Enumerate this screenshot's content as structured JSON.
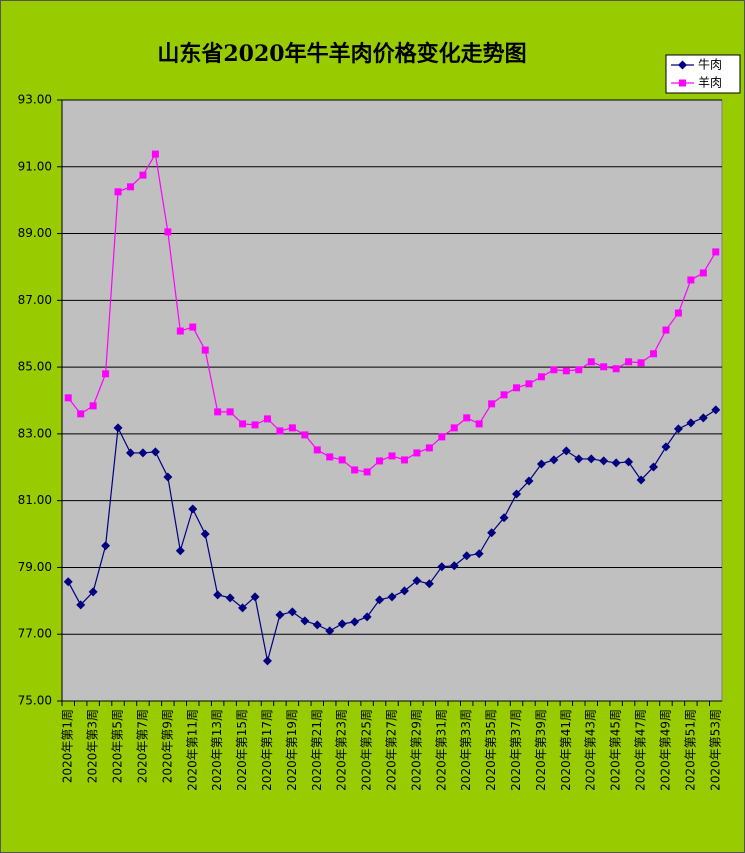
{
  "chart_data": {
    "type": "line",
    "title": "山东省2020年牛羊肉价格变化走势图",
    "categories": [
      "2020年第1周",
      null,
      "2020年第3周",
      null,
      "2020年第5周",
      null,
      "2020年第7周",
      null,
      "2020年第9周",
      null,
      "2020年第11周",
      null,
      "2020年第13周",
      null,
      "2020年第15周",
      null,
      "2020年第17周",
      null,
      "2020年第19周",
      null,
      "2020年第21周",
      null,
      "2020年第23周",
      null,
      "2020年第25周",
      null,
      "2020年第27周",
      null,
      "2020年第29周",
      null,
      "2020年第31周",
      null,
      "2020年第33周",
      null,
      "2020年第35周",
      null,
      "2020年第37周",
      null,
      "2020年第39周",
      null,
      "2020年第41周",
      null,
      "2020年第43周",
      null,
      "2020年第45周",
      null,
      "2020年第47周",
      null,
      "2020年第49周",
      null,
      "2020年第51周",
      null,
      "2020年第53周"
    ],
    "series": [
      {
        "name": "牛肉",
        "color": "#000080",
        "marker": "diamond",
        "values": [
          78.57,
          77.88,
          78.27,
          79.65,
          83.18,
          82.43,
          82.43,
          82.46,
          81.71,
          79.5,
          80.75,
          80.0,
          78.18,
          78.09,
          77.79,
          78.12,
          76.2,
          77.58,
          77.67,
          77.4,
          77.28,
          77.1,
          77.31,
          77.37,
          77.52,
          78.03,
          78.12,
          78.3,
          78.6,
          78.51,
          79.02,
          79.05,
          79.35,
          79.41,
          80.04,
          80.49,
          81.2,
          81.59,
          82.1,
          82.22,
          82.49,
          82.25,
          82.25,
          82.19,
          82.13,
          82.16,
          81.62,
          82.01,
          82.61,
          83.15,
          83.33,
          83.48,
          83.72
        ]
      },
      {
        "name": "羊肉",
        "color": "#ff00ff",
        "marker": "square",
        "values": [
          84.08,
          83.6,
          83.84,
          84.8,
          90.25,
          90.4,
          90.75,
          91.38,
          89.05,
          86.08,
          86.2,
          85.51,
          83.66,
          83.66,
          83.3,
          83.27,
          83.45,
          83.09,
          83.18,
          82.97,
          82.52,
          82.31,
          82.22,
          81.92,
          81.86,
          82.19,
          82.34,
          82.22,
          82.43,
          82.58,
          82.91,
          83.18,
          83.48,
          83.3,
          83.9,
          84.17,
          84.38,
          84.5,
          84.71,
          84.92,
          84.89,
          84.92,
          85.16,
          85.01,
          84.95,
          85.16,
          85.13,
          85.4,
          86.11,
          86.62,
          87.61,
          87.82,
          88.45
        ]
      }
    ],
    "ylim": [
      75,
      93
    ],
    "yticks": [
      {
        "value": 75,
        "label": "75.00"
      },
      {
        "value": 77,
        "label": "77.00"
      },
      {
        "value": 79,
        "label": "79.00"
      },
      {
        "value": 81,
        "label": "81.00"
      },
      {
        "value": 83,
        "label": "83.00"
      },
      {
        "value": 85,
        "label": "85.00"
      },
      {
        "value": 87,
        "label": "87.00"
      },
      {
        "value": 89,
        "label": "89.00"
      },
      {
        "value": 91,
        "label": "91.00"
      },
      {
        "value": 93,
        "label": "93.00"
      }
    ],
    "grid": true,
    "legend": "top-right",
    "plot_background": "#c0c0c0",
    "background": "#99cc00"
  }
}
